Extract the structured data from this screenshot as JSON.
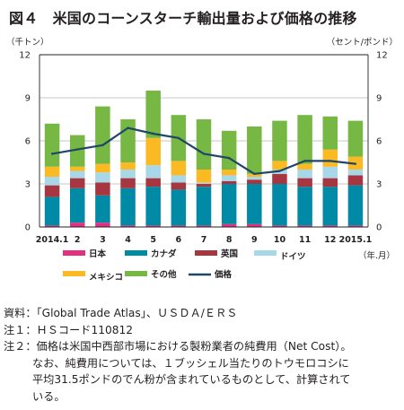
{
  "title": "図４　米国のコーンスターチ輸出量および価格の推移",
  "notes": {
    "source": "資料：「Global Trade Atlas」、ＵＳＤＡ/ＥＲＳ",
    "note1": "注１：ＨＳコード110812",
    "note2_line1": "注２：価格は米国中西部市場における製粉業者の純費用（Net Cost）。",
    "note2_line2": "なお、純費用については、１ブッシェル当たりのトウモロコシに",
    "note2_line3": "平均31.5ポンドのでん粉が含まれているものとして、計算されて",
    "note2_line4": "いる。"
  },
  "colors": {
    "japan": "#e4317f",
    "canada": "#008aa5",
    "uk": "#a6363f",
    "germany": "#a8d8e8",
    "mexico": "#fbb924",
    "other": "#76b843",
    "price": "#1e4766",
    "grid": "#b5b5b5",
    "axis": "#231f20"
  },
  "chart_data": {
    "type": "bar",
    "stacked": true,
    "categories": [
      "2014.1",
      "2",
      "3",
      "4",
      "5",
      "6",
      "7",
      "8",
      "9",
      "10",
      "11",
      "12",
      "2015.1"
    ],
    "xlabel": "（年.月）",
    "ylabel_left": "（千トン）",
    "ylabel_right": "（セント/ポンド）",
    "ylim_left": [
      0,
      12
    ],
    "ylim_right": [
      0,
      12
    ],
    "yticks": [
      0,
      3,
      6,
      9,
      12
    ],
    "grid": true,
    "legend_position": "bottom",
    "series": [
      {
        "name": "日本",
        "key": "japan",
        "values": [
          0.1,
          0.3,
          0.3,
          0.1,
          0.1,
          0.1,
          0.1,
          0.2,
          0.2,
          0.1,
          0.1,
          0.1,
          0.1
        ]
      },
      {
        "name": "カナダ",
        "key": "canada",
        "values": [
          2.0,
          2.4,
          1.9,
          2.6,
          2.7,
          2.5,
          2.7,
          2.8,
          2.8,
          2.9,
          2.7,
          2.7,
          2.8
        ]
      },
      {
        "name": "英国",
        "key": "uk",
        "values": [
          0.8,
          0.7,
          0.9,
          0.7,
          0.6,
          0.5,
          0.2,
          0.2,
          0.3,
          0.7,
          0.6,
          0.6,
          0.7
        ]
      },
      {
        "name": "ドイツ",
        "key": "germany",
        "values": [
          0.6,
          0.5,
          0.7,
          0.6,
          0.9,
          0.5,
          0.1,
          0.4,
          0.2,
          0.3,
          0.6,
          0.8,
          0.4
        ]
      },
      {
        "name": "メキシコ",
        "key": "mexico",
        "values": [
          0.7,
          0.3,
          0.6,
          0.5,
          1.9,
          1.0,
          0.9,
          0.4,
          0.2,
          0.6,
          0.4,
          1.2,
          0.9
        ]
      },
      {
        "name": "その他",
        "key": "other",
        "values": [
          3.0,
          2.2,
          4.0,
          3.0,
          3.3,
          3.2,
          3.5,
          2.7,
          3.3,
          2.8,
          3.4,
          2.3,
          2.5
        ]
      }
    ],
    "line": {
      "name": "価格",
      "key": "price",
      "values": [
        5.1,
        5.4,
        5.7,
        6.9,
        6.5,
        6.2,
        5.1,
        4.8,
        3.7,
        3.9,
        4.6,
        4.6,
        4.4
      ]
    }
  }
}
